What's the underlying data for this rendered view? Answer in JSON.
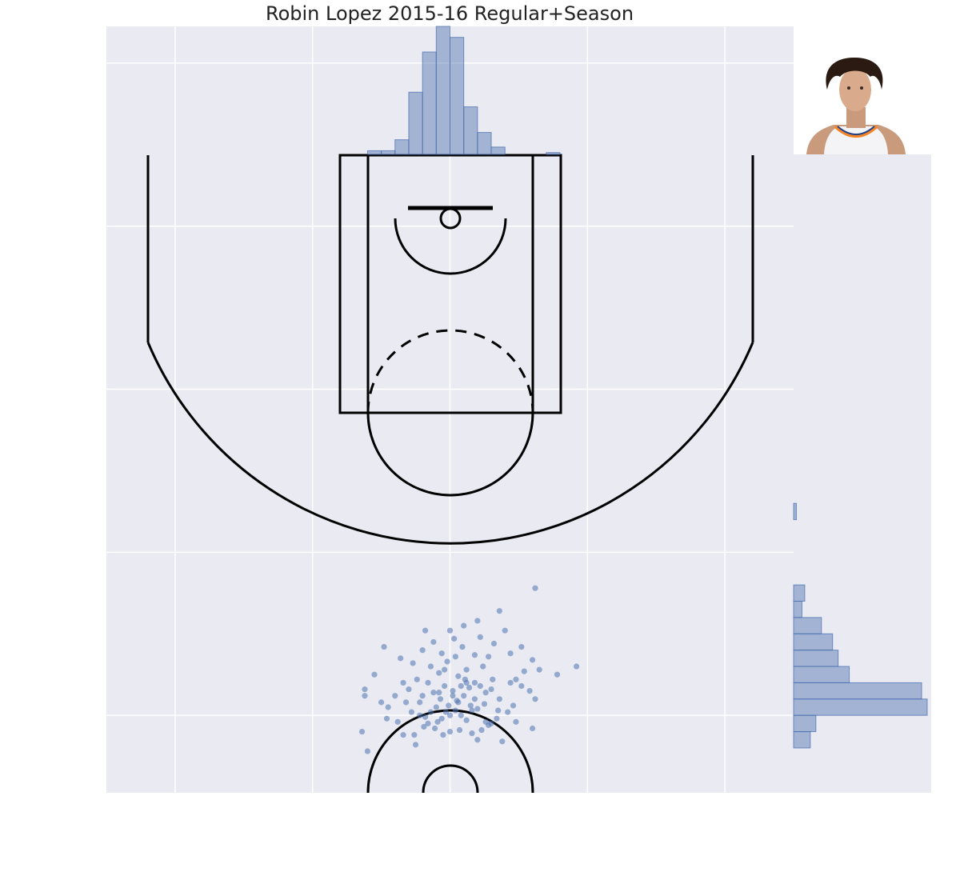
{
  "chart_data": {
    "type": "scatter",
    "title": "Robin Lopez 2015-16 Regular+Season",
    "xlabel": "",
    "ylabel": "",
    "x_axis_reversed": true,
    "xlim": [
      250,
      -250
    ],
    "ylim": [
      422.5,
      -47.5
    ],
    "grid": true,
    "court_lines": true,
    "player_photo": "player-headshot",
    "colors": {
      "background": "#EAEAF2",
      "grid": "#FFFFFF",
      "court": "#000000",
      "points": "#4C72B0",
      "hist_fill": "#4C72B0"
    },
    "shots": [
      [
        0,
        0
      ],
      [
        3,
        2
      ],
      [
        -4,
        3
      ],
      [
        6,
        -2
      ],
      [
        -8,
        0
      ],
      [
        10,
        5
      ],
      [
        -12,
        -3
      ],
      [
        14,
        2
      ],
      [
        -15,
        6
      ],
      [
        18,
        -1
      ],
      [
        -20,
        4
      ],
      [
        22,
        0
      ],
      [
        -5,
        9
      ],
      [
        7,
        10
      ],
      [
        -10,
        12
      ],
      [
        12,
        14
      ],
      [
        -25,
        7
      ],
      [
        28,
        2
      ],
      [
        -30,
        -5
      ],
      [
        32,
        8
      ],
      [
        -35,
        3
      ],
      [
        38,
        -4
      ],
      [
        -2,
        15
      ],
      [
        4,
        18
      ],
      [
        -14,
        17
      ],
      [
        16,
        20
      ],
      [
        -18,
        10
      ],
      [
        20,
        12
      ],
      [
        -22,
        18
      ],
      [
        24,
        22
      ],
      [
        -26,
        14
      ],
      [
        30,
        16
      ],
      [
        -6,
        24
      ],
      [
        8,
        26
      ],
      [
        -12,
        28
      ],
      [
        14,
        30
      ],
      [
        0,
        -10
      ],
      [
        5,
        -12
      ],
      [
        -7,
        -9
      ],
      [
        11,
        -8
      ],
      [
        -16,
        -11
      ],
      [
        19,
        -7
      ],
      [
        -23,
        -9
      ],
      [
        26,
        -12
      ],
      [
        -28,
        -6
      ],
      [
        2,
        33
      ],
      [
        -4,
        36
      ],
      [
        6,
        38
      ],
      [
        -9,
        42
      ],
      [
        12,
        45
      ],
      [
        -18,
        37
      ],
      [
        20,
        40
      ],
      [
        -24,
        30
      ],
      [
        27,
        32
      ],
      [
        -31,
        22
      ],
      [
        34,
        20
      ],
      [
        -36,
        10
      ],
      [
        40,
        12
      ],
      [
        -42,
        2
      ],
      [
        45,
        5
      ],
      [
        -48,
        -4
      ],
      [
        50,
        8
      ],
      [
        -52,
        18
      ],
      [
        55,
        25
      ],
      [
        -58,
        15
      ],
      [
        62,
        12
      ],
      [
        -65,
        28
      ],
      [
        -3,
        47
      ],
      [
        0,
        52
      ],
      [
        -10,
        55
      ],
      [
        18,
        52
      ],
      [
        -32,
        44
      ],
      [
        36,
        35
      ],
      [
        -44,
        38
      ],
      [
        48,
        42
      ],
      [
        -22,
        48
      ],
      [
        -40,
        52
      ],
      [
        -60,
        -8
      ],
      [
        -62,
        10
      ],
      [
        64,
        -10
      ],
      [
        -38,
        -16
      ],
      [
        -20,
        -15
      ],
      [
        25,
        -18
      ],
      [
        -8,
        18
      ],
      [
        9,
        -4
      ],
      [
        -16,
        3
      ],
      [
        16,
        -5
      ],
      [
        -11,
        22
      ],
      [
        4,
        28
      ],
      [
        -28,
        36
      ],
      [
        -52,
        42
      ],
      [
        -78,
        25
      ],
      [
        -92,
        30
      ],
      [
        60,
        -22
      ],
      [
        62,
        16
      ],
      [
        -54,
        27
      ],
      [
        -44,
        20
      ],
      [
        -18,
        20
      ],
      [
        -30,
        16
      ],
      [
        -34,
        -2
      ],
      [
        -20,
        58
      ],
      [
        -6,
        8
      ],
      [
        22,
        8
      ],
      [
        -26,
        -4
      ],
      [
        34,
        -12
      ],
      [
        -46,
        6
      ],
      [
        46,
        -2
      ],
      [
        -48,
        22
      ],
      [
        -60,
        34
      ],
      [
        -36,
        64
      ],
      [
        -62,
        78
      ],
      [
        -2,
        12
      ],
      [
        1,
        6
      ],
      [
        -12,
        20
      ],
      [
        8,
        14
      ]
    ],
    "x_histogram": {
      "bin_edges": [
        -80,
        -70,
        -60,
        -50,
        -40,
        -30,
        -20,
        -10,
        0,
        10,
        20,
        30,
        40,
        50,
        60,
        70,
        80
      ],
      "counts": [
        1,
        0,
        0,
        0,
        4,
        12,
        26,
        64,
        70,
        56,
        34,
        8,
        2,
        2,
        0,
        0
      ]
    },
    "y_histogram": {
      "bin_edges": [
        -20,
        -10,
        0,
        10,
        20,
        30,
        40,
        50,
        60,
        70,
        80,
        90,
        100,
        110,
        120,
        130,
        140
      ],
      "counts": [
        6,
        8,
        48,
        46,
        20,
        16,
        14,
        10,
        3,
        4,
        0,
        0,
        0,
        0,
        1,
        0
      ]
    }
  }
}
